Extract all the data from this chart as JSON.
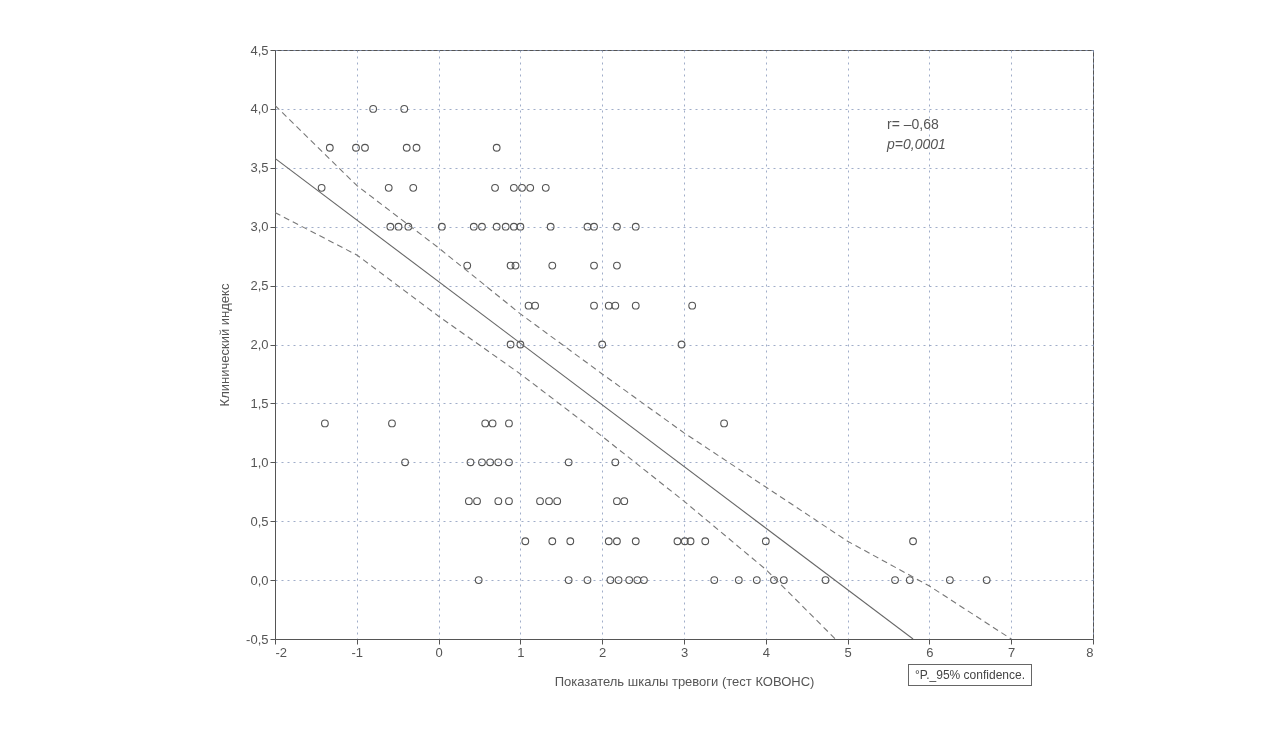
{
  "chart_data": {
    "type": "scatter",
    "xlabel": "Показатель шкалы тревоги (тест КОВОНС)",
    "ylabel": "Клинический индекс",
    "xlim": [
      -2,
      8
    ],
    "xticks": [
      -2,
      -1,
      0,
      1,
      2,
      3,
      4,
      5,
      6,
      7,
      8
    ],
    "ylim": [
      -0.5,
      4.5
    ],
    "yticks": [
      {
        "value": -0.5,
        "label": "-0,5"
      },
      {
        "value": 0,
        "label": "0,0"
      },
      {
        "value": 0.5,
        "label": "0,5"
      },
      {
        "value": 1,
        "label": "1,0"
      },
      {
        "value": 1.5,
        "label": "1,5"
      },
      {
        "value": 2,
        "label": "2,0"
      },
      {
        "value": 2.5,
        "label": "2,5"
      },
      {
        "value": 3,
        "label": "3,0"
      },
      {
        "value": 3.5,
        "label": "3,5"
      },
      {
        "value": 4,
        "label": "4,0"
      },
      {
        "value": 4.5,
        "label": "4,5"
      }
    ],
    "grid": true,
    "annotations": [
      "r= –0,68",
      "p=0,0001",
      "°P._95% confidence."
    ],
    "series": [
      {
        "color": "#555555",
        "marker": "circle",
        "x": [
          -0.8,
          -0.42,
          -1.33,
          -1.01,
          -0.9,
          -0.39,
          -0.27,
          0.71,
          -1.43,
          -0.61,
          -0.31,
          0.69,
          0.92,
          1.02,
          1.12,
          1.31,
          -0.59,
          -0.49,
          -0.37,
          0.04,
          0.43,
          0.53,
          0.71,
          0.82,
          0.92,
          1.0,
          1.37,
          1.82,
          1.9,
          2.18,
          2.41,
          0.35,
          0.88,
          0.94,
          1.39,
          1.9,
          2.18,
          1.1,
          1.18,
          1.9,
          2.08,
          2.16,
          2.41,
          3.1,
          0.88,
          1.0,
          2.0,
          2.97,
          -1.39,
          -0.57,
          0.57,
          0.66,
          0.86,
          3.49,
          -0.41,
          0.39,
          0.53,
          0.63,
          0.73,
          0.86,
          1.59,
          2.16,
          0.37,
          0.47,
          0.73,
          0.86,
          1.24,
          1.35,
          1.45,
          2.18,
          2.27,
          1.06,
          1.39,
          1.61,
          2.08,
          2.18,
          2.41,
          2.92,
          3.01,
          3.08,
          3.26,
          4.0,
          5.8,
          0.49,
          1.59,
          1.82,
          2.1,
          2.2,
          2.33,
          2.43,
          2.51,
          3.37,
          3.67,
          3.89,
          4.1,
          4.22,
          4.73,
          5.58,
          5.76,
          6.25,
          6.7
        ],
        "values": [
          4,
          4,
          3.67,
          3.67,
          3.67,
          3.67,
          3.67,
          3.67,
          3.33,
          3.33,
          3.33,
          3.33,
          3.33,
          3.33,
          3.33,
          3.33,
          3,
          3,
          3,
          3,
          3,
          3,
          3,
          3,
          3,
          3,
          3,
          3,
          3,
          3,
          3,
          2.67,
          2.67,
          2.67,
          2.67,
          2.67,
          2.67,
          2.33,
          2.33,
          2.33,
          2.33,
          2.33,
          2.33,
          2.33,
          2,
          2,
          2,
          2,
          1.33,
          1.33,
          1.33,
          1.33,
          1.33,
          1.33,
          1,
          1,
          1,
          1,
          1,
          1,
          1,
          1,
          0.67,
          0.67,
          0.67,
          0.67,
          0.67,
          0.67,
          0.67,
          0.67,
          0.67,
          0.33,
          0.33,
          0.33,
          0.33,
          0.33,
          0.33,
          0.33,
          0.33,
          0.33,
          0.33,
          0.33,
          0.33,
          0,
          0,
          0,
          0,
          0,
          0,
          0,
          0,
          0,
          0,
          0,
          0,
          0,
          0,
          0,
          0,
          0,
          0
        ]
      },
      {
        "type": "line",
        "color": "#666666",
        "line_style": "solid",
        "x": [
          -2,
          5.8
        ],
        "values": [
          3.58,
          -0.5
        ]
      },
      {
        "type": "line",
        "color": "#777777",
        "line_style": "dashed",
        "x": [
          -2,
          -1,
          0,
          1,
          2,
          3,
          4,
          5,
          6,
          7
        ],
        "values": [
          4.03,
          3.35,
          2.82,
          2.26,
          1.75,
          1.25,
          0.79,
          0.33,
          -0.05,
          -0.5
        ]
      },
      {
        "type": "line",
        "color": "#777777",
        "line_style": "dashed",
        "x": [
          -2,
          -1,
          0,
          1,
          2,
          3,
          4,
          4.85
        ],
        "values": [
          3.12,
          2.76,
          2.24,
          1.75,
          1.22,
          0.67,
          0.09,
          -0.5
        ]
      }
    ]
  }
}
